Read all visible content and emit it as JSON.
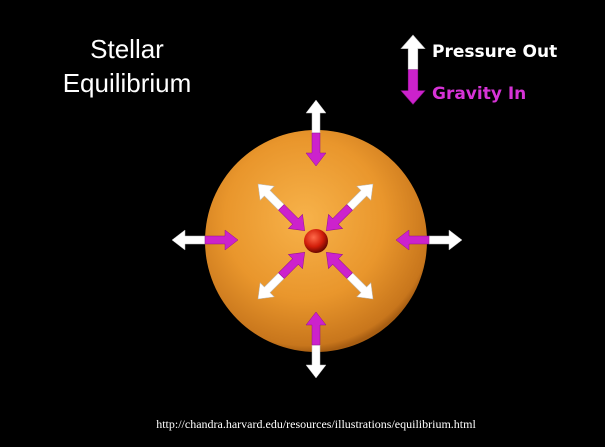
{
  "title": [
    "Stellar",
    "Equilibrium"
  ],
  "legend": {
    "pressure": "Pressure Out",
    "gravity": "Gravity In"
  },
  "source": "http://chandra.harvard.edu/resources/illustrations/equilibrium.html"
}
